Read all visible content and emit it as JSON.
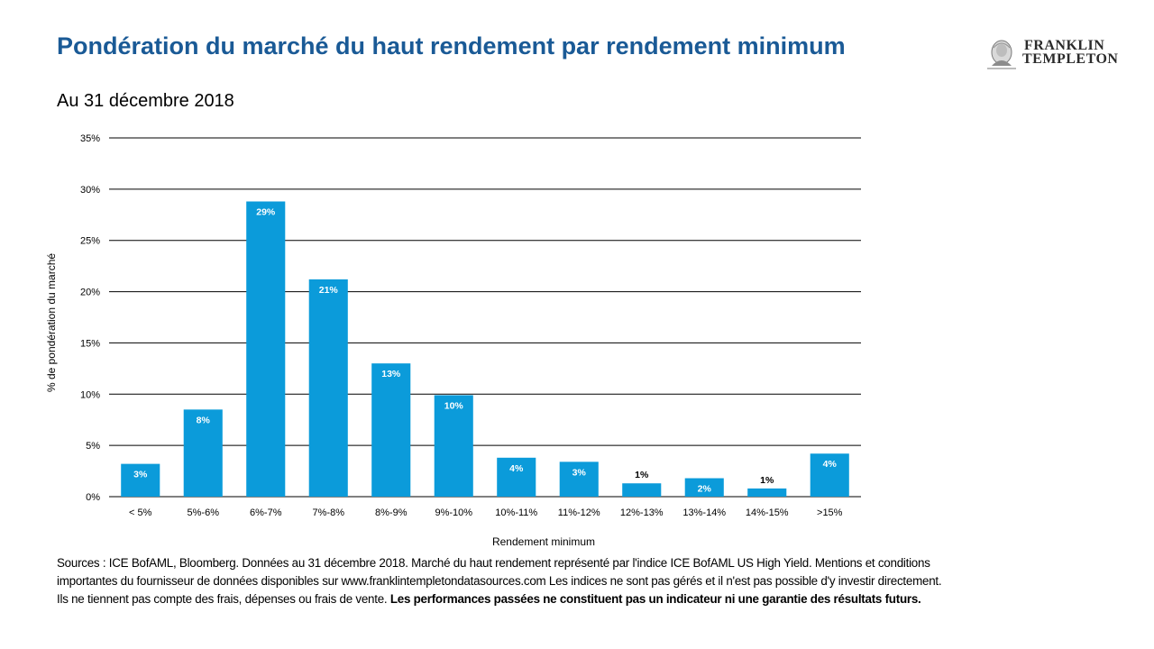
{
  "header": {
    "title": "Pondération du marché du haut rendement par rendement minimum",
    "subtitle": "Au 31 décembre 2018",
    "logo_line1": "FRANKLIN",
    "logo_line2": "TEMPLETON"
  },
  "chart_data": {
    "type": "bar",
    "title": "",
    "xlabel": "Rendement minimum",
    "ylabel": "% de pondération du marché",
    "ylim": [
      0,
      35
    ],
    "yticks": [
      0,
      5,
      10,
      15,
      20,
      25,
      30,
      35
    ],
    "ytick_labels": [
      "0%",
      "5%",
      "10%",
      "15%",
      "20%",
      "25%",
      "30%",
      "35%"
    ],
    "grid": true,
    "categories": [
      "< 5%",
      "5%-6%",
      "6%-7%",
      "7%-8%",
      "8%-9%",
      "9%-10%",
      "10%-11%",
      "11%-12%",
      "12%-13%",
      "13%-14%",
      "14%-15%",
      ">15%"
    ],
    "values": [
      3.2,
      8.5,
      28.8,
      21.2,
      13.0,
      9.9,
      3.8,
      3.4,
      1.3,
      1.8,
      0.8,
      4.2
    ],
    "data_labels": [
      "3%",
      "8%",
      "29%",
      "21%",
      "13%",
      "10%",
      "4%",
      "3%",
      "1%",
      "2%",
      "1%",
      "4%"
    ],
    "bar_color": "#0b9bda"
  },
  "footer": {
    "sources": "Sources : ICE BofAML, Bloomberg. Données au 31 décembre 2018. Marché du haut rendement représenté par l'indice ICE BofAML US High Yield. Mentions et conditions importantes du fournisseur de données disponibles sur www.franklintempletondatasources.com Les indices ne sont pas gérés et il n'est pas possible d'y investir directement. Ils ne tiennent pas compte des frais, dépenses ou frais de vente.",
    "disclaimer": "Les performances passées ne constituent pas un indicateur ni une garantie des résultats futurs."
  }
}
